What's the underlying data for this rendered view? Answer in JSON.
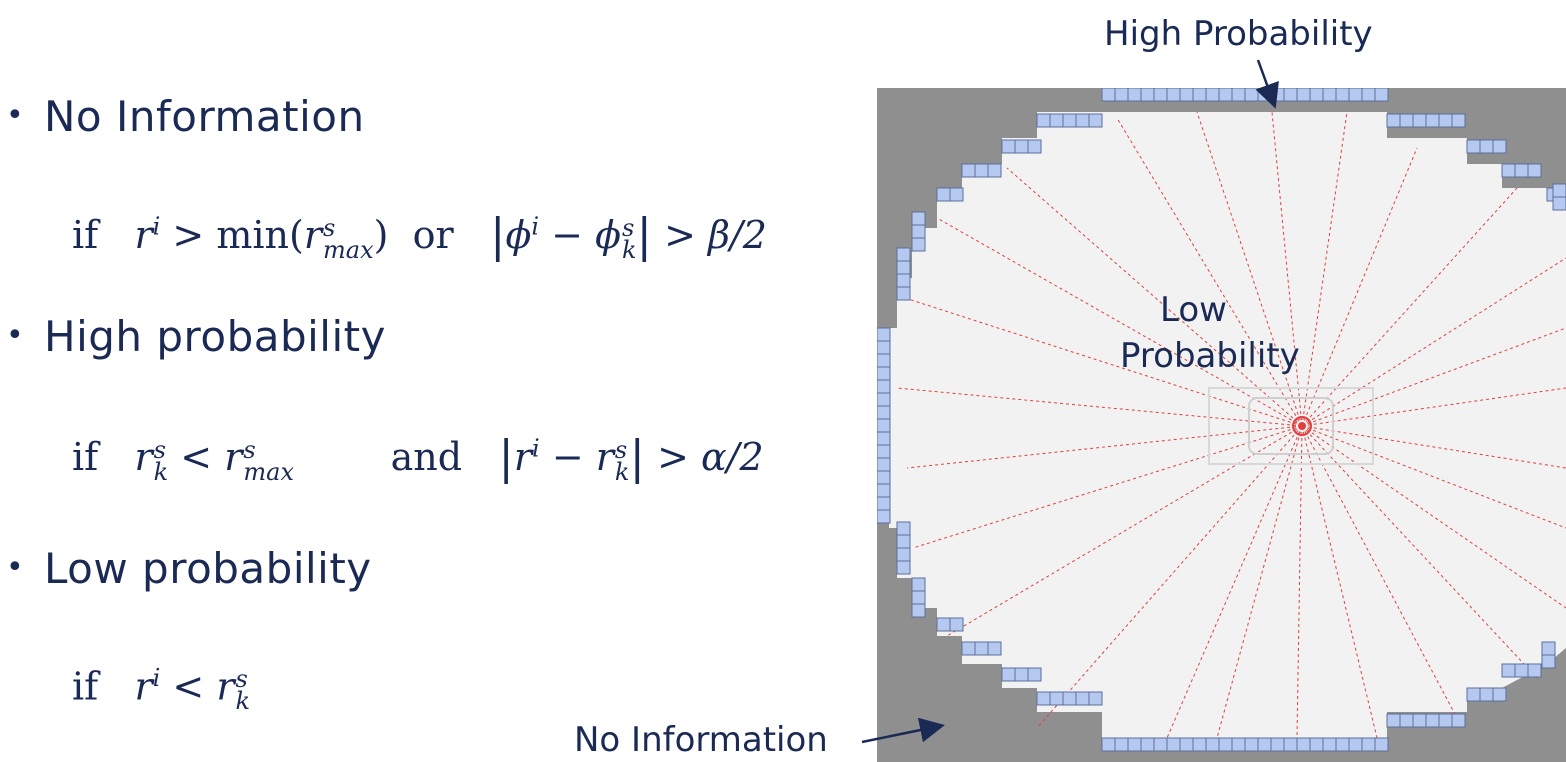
{
  "bullets": {
    "no_info": "No Information",
    "high": "High probability",
    "low": "Low probability"
  },
  "formulas": {
    "f1": {
      "if": "if",
      "r": "r",
      "sup_i": "i",
      "gt": ">",
      "min": "min(",
      "r2": "r",
      "sup_s": "s",
      "sub_max": "max",
      "close": ")",
      "or": "or",
      "phi": "ϕ",
      "minus": "−",
      "phi2": "ϕ",
      "sub_k": "k",
      "tail": "> β/2"
    },
    "f2": {
      "if": "if",
      "r": "r",
      "sup_s": "s",
      "sub_k": "k",
      "lt": "<",
      "r2": "r",
      "sup_s2": "s",
      "sub_max": "max",
      "and": "and",
      "r3": "r",
      "sup_i": "i",
      "minus": "−",
      "r4": "r",
      "sup_s3": "s",
      "sub_k2": "k",
      "tail": "> α/2"
    },
    "f3": {
      "if": "if",
      "r": "r",
      "sup_i": "i",
      "lt": "<",
      "r2": "r",
      "sup_s": "s",
      "sub_k": "k"
    }
  },
  "diagram": {
    "label_high": "High Probability",
    "label_low_line1": "Low",
    "label_low_line2": "Probability",
    "label_noinfo": "No Information",
    "colors": {
      "background": "#8f8f8f",
      "free": "#f2f2f2",
      "occupied": "#b5c8f0",
      "cell_border": "#5a6f9a",
      "ray": "#e04040",
      "arrow": "#1a2a55"
    }
  }
}
